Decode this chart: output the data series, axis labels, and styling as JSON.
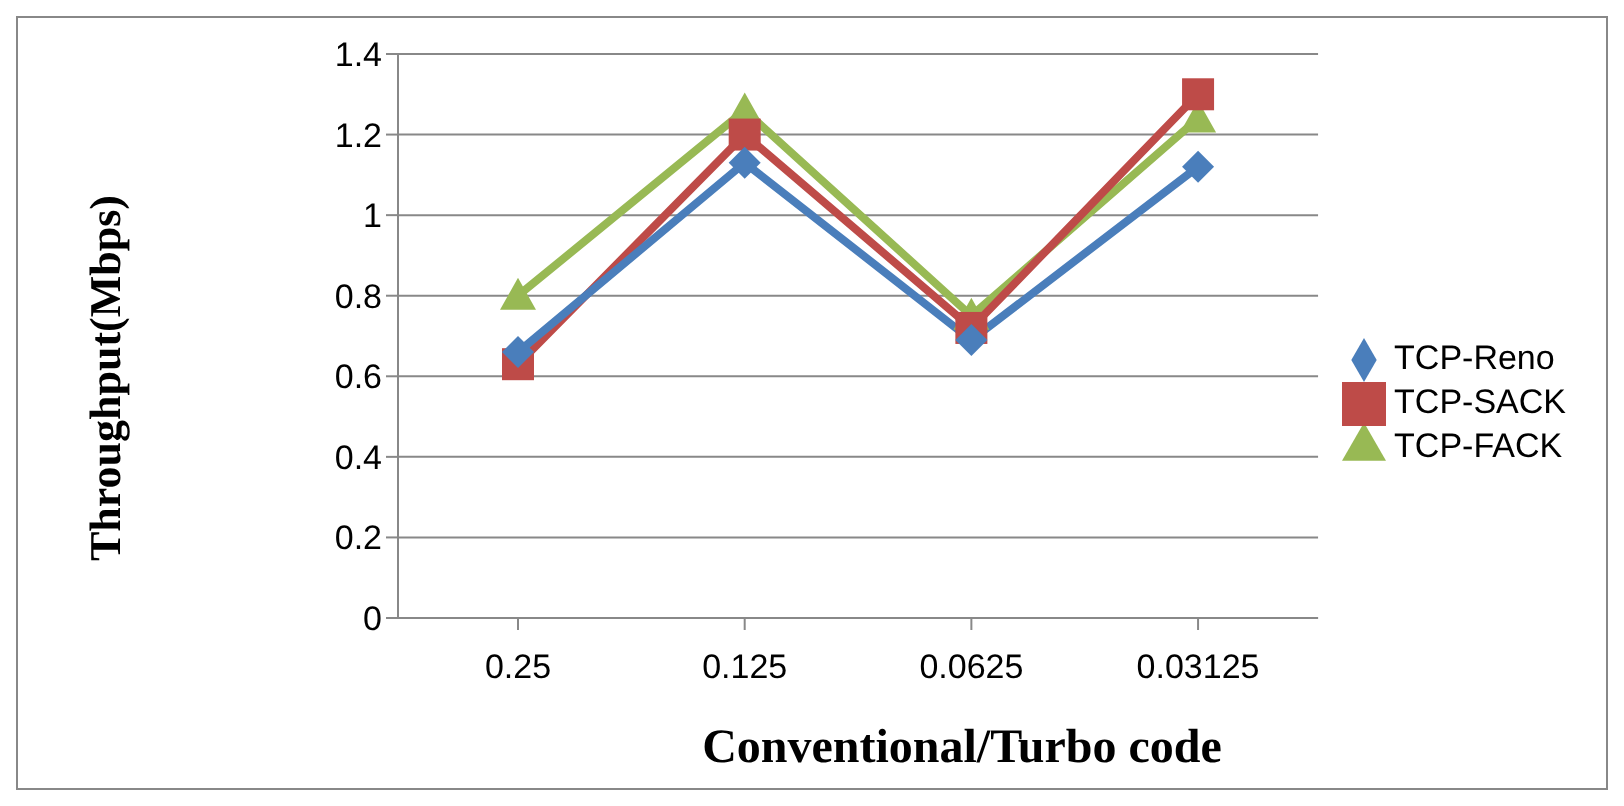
{
  "chart_data": {
    "type": "line",
    "xlabel": "Conventional/Turbo code",
    "ylabel": "Throughput(Mbps)",
    "categories": [
      "0.25",
      "0.125",
      "0.0625",
      "0.03125"
    ],
    "series": [
      {
        "name": "TCP-Reno",
        "color": "#4a7ebb",
        "marker": "diamond",
        "values": [
          0.66,
          1.13,
          0.69,
          1.12
        ]
      },
      {
        "name": "TCP-SACK",
        "color": "#be4b48",
        "marker": "square",
        "values": [
          0.63,
          1.2,
          0.72,
          1.3
        ]
      },
      {
        "name": "TCP-FACK",
        "color": "#98b954",
        "marker": "triangle",
        "values": [
          0.8,
          1.26,
          0.75,
          1.24
        ]
      }
    ],
    "ylim": [
      0,
      1.4
    ],
    "yticks": [
      0,
      0.2,
      0.4,
      0.6,
      0.8,
      1,
      1.2,
      1.4
    ],
    "grid": "y",
    "legend": "right",
    "line_style": "solid"
  }
}
